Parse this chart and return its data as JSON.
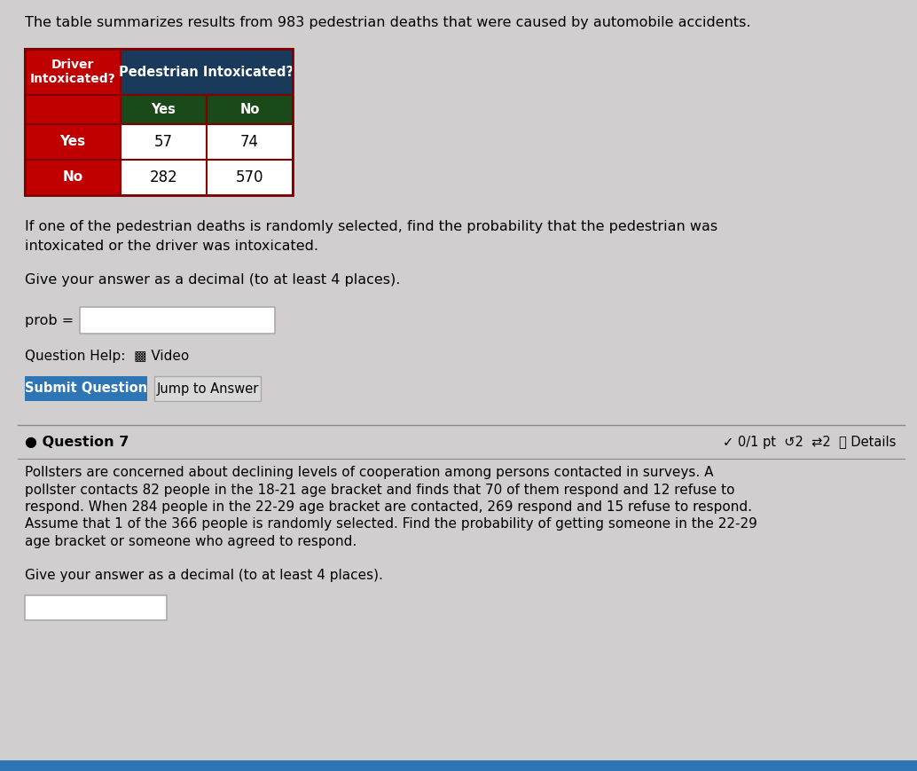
{
  "bg_color": "#d0cece",
  "text_color": "#000000",
  "title1": "The table summarizes results from 983 pedestrian deaths that were caused by automobile accidents.",
  "table_header_left": "Driver\nIntoxicated?",
  "table_col_header": "Pedestrian Intoxicated?",
  "table_sub_col1": "Yes",
  "table_sub_col2": "No",
  "table_row1_label": "Yes",
  "table_row2_label": "No",
  "table_data": [
    [
      57,
      74
    ],
    [
      282,
      570
    ]
  ],
  "table_header_color": "#c00000",
  "table_col_header_color": "#1a3a5c",
  "table_sub_col_color": "#1a4a1a",
  "table_row_label_color": "#c00000",
  "table_data_bg": "#ffffff",
  "q1_text_line1": "If one of the pedestrian deaths is randomly selected, find the probability that the pedestrian was",
  "q1_text_line2": "intoxicated or the driver was intoxicated.",
  "q1_give": "Give your answer as a decimal (to at least 4 places).",
  "q1_prob_label": "prob =",
  "btn1_text": "Submit Question",
  "btn2_text": "Jump to Answer",
  "q2_bullet": "● Question 7",
  "q2_score": "✓ 0/1 pt  ↺2  ⇄2  ⓘ Details",
  "q2_body_lines": [
    "Pollsters are concerned about declining levels of cooperation among persons contacted in surveys. A",
    "pollster contacts 82 people in the 18-21 age bracket and finds that 70 of them respond and 12 refuse to",
    "respond. When 284 people in the 22-29 age bracket are contacted, 269 respond and 15 refuse to respond.",
    "Assume that 1 of the 366 people is randomly selected. Find the probability of getting someone in the 22-29",
    "age bracket or someone who agreed to respond."
  ],
  "q2_give": "Give your answer as a decimal (to at least 4 places).",
  "btn1_color": "#2e75b6",
  "btn2_color": "#d9d9d9",
  "btn1_text_color": "#ffffff",
  "btn2_text_color": "#000000",
  "bottom_bar_color": "#2e75b6",
  "fig_w": 10.34,
  "fig_h": 8.69,
  "dpi": 100
}
